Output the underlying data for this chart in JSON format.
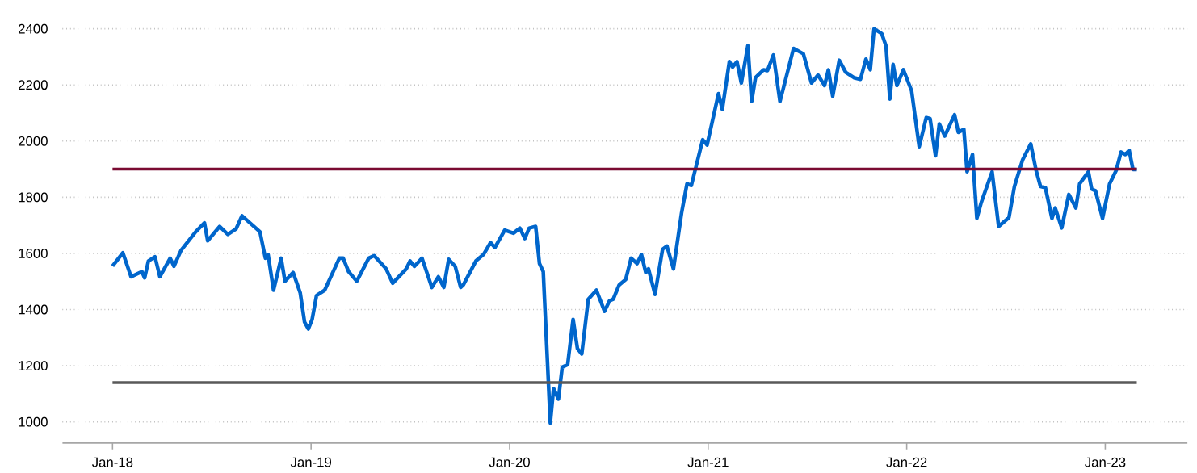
{
  "chart_data": {
    "type": "line",
    "x": [
      "2018-01-01",
      "2018-01-20",
      "2018-02-04",
      "2018-02-24",
      "2018-03-01",
      "2018-03-08",
      "2018-03-20",
      "2018-03-29",
      "2018-04-17",
      "2018-04-24",
      "2018-05-07",
      "2018-06-03",
      "2018-06-19",
      "2018-06-25",
      "2018-07-17",
      "2018-08-01",
      "2018-08-16",
      "2018-08-27",
      "2018-09-29",
      "2018-10-09",
      "2018-10-14",
      "2018-10-24",
      "2018-11-07",
      "2018-11-14",
      "2018-11-29",
      "2018-12-12",
      "2018-12-20",
      "2018-12-27",
      "2019-01-03",
      "2019-01-11",
      "2019-01-26",
      "2019-02-22",
      "2019-03-01",
      "2019-03-11",
      "2019-03-26",
      "2019-04-17",
      "2019-04-27",
      "2019-05-19",
      "2019-05-31",
      "2019-06-25",
      "2019-07-02",
      "2019-07-10",
      "2019-07-24",
      "2019-08-11",
      "2019-08-23",
      "2019-09-02",
      "2019-09-11",
      "2019-09-23",
      "2019-10-03",
      "2019-10-08",
      "2019-10-31",
      "2019-11-14",
      "2019-11-27",
      "2019-12-05",
      "2019-12-23",
      "2020-01-08",
      "2020-01-20",
      "2020-01-29",
      "2020-02-06",
      "2020-02-18",
      "2020-02-25",
      "2020-03-03",
      "2020-03-16",
      "2020-03-22",
      "2020-03-31",
      "2020-04-07",
      "2020-04-17",
      "2020-04-27",
      "2020-05-05",
      "2020-05-13",
      "2020-05-25",
      "2020-06-09",
      "2020-06-24",
      "2020-07-03",
      "2020-07-10",
      "2020-07-21",
      "2020-08-02",
      "2020-08-12",
      "2020-08-23",
      "2020-08-31",
      "2020-09-08",
      "2020-09-13",
      "2020-09-25",
      "2020-10-09",
      "2020-10-17",
      "2020-10-29",
      "2020-11-13",
      "2020-11-23",
      "2020-12-01",
      "2020-12-22",
      "2020-12-30",
      "2021-01-20",
      "2021-01-27",
      "2021-02-09",
      "2021-02-15",
      "2021-02-23",
      "2021-03-03",
      "2021-03-15",
      "2021-03-22",
      "2021-03-29",
      "2021-04-13",
      "2021-04-20",
      "2021-05-01",
      "2021-05-13",
      "2021-06-07",
      "2021-06-25",
      "2021-07-10",
      "2021-07-22",
      "2021-08-03",
      "2021-08-10",
      "2021-08-18",
      "2021-08-30",
      "2021-09-11",
      "2021-09-26",
      "2021-10-08",
      "2021-10-18",
      "2021-10-26",
      "2021-11-02",
      "2021-11-16",
      "2021-11-24",
      "2021-12-01",
      "2021-12-07",
      "2021-12-14",
      "2021-12-26",
      "2022-01-10",
      "2022-01-24",
      "2022-02-06",
      "2022-02-13",
      "2022-02-23",
      "2022-03-02",
      "2022-03-12",
      "2022-03-30",
      "2022-04-06",
      "2022-04-16",
      "2022-04-22",
      "2022-05-02",
      "2022-05-10",
      "2022-05-18",
      "2022-06-07",
      "2022-06-19",
      "2022-07-08",
      "2022-07-18",
      "2022-08-02",
      "2022-08-17",
      "2022-08-27",
      "2022-09-04",
      "2022-09-13",
      "2022-09-25",
      "2022-10-01",
      "2022-10-13",
      "2022-10-26",
      "2022-11-08",
      "2022-11-15",
      "2022-12-01",
      "2022-12-07",
      "2022-12-14",
      "2022-12-27",
      "2023-01-09",
      "2023-01-21",
      "2023-01-30",
      "2023-02-07",
      "2023-02-14",
      "2023-02-21",
      "2023-02-28"
    ],
    "series": [
      {
        "color": "#0066cc",
        "values": [
          1555,
          1602,
          1517,
          1535,
          1513,
          1573,
          1588,
          1517,
          1583,
          1554,
          1611,
          1677,
          1709,
          1645,
          1696,
          1668,
          1687,
          1734,
          1677,
          1583,
          1596,
          1469,
          1583,
          1501,
          1532,
          1460,
          1356,
          1331,
          1365,
          1450,
          1469,
          1583,
          1583,
          1535,
          1501,
          1583,
          1592,
          1545,
          1494,
          1545,
          1573,
          1554,
          1583,
          1479,
          1517,
          1479,
          1579,
          1554,
          1479,
          1488,
          1573,
          1596,
          1639,
          1621,
          1683,
          1672,
          1690,
          1653,
          1690,
          1696,
          1564,
          1535,
          996,
          1119,
          1081,
          1195,
          1204,
          1365,
          1261,
          1242,
          1437,
          1469,
          1394,
          1431,
          1437,
          1488,
          1507,
          1583,
          1564,
          1596,
          1532,
          1545,
          1454,
          1615,
          1626,
          1545,
          1744,
          1848,
          1842,
          2005,
          1986,
          2169,
          2113,
          2283,
          2264,
          2283,
          2207,
          2340,
          2141,
          2226,
          2254,
          2251,
          2307,
          2141,
          2330,
          2311,
          2207,
          2235,
          2198,
          2254,
          2160,
          2288,
          2245,
          2226,
          2220,
          2292,
          2254,
          2400,
          2383,
          2339,
          2150,
          2273,
          2198,
          2254,
          2179,
          1980,
          2084,
          2080,
          1948,
          2061,
          2018,
          2094,
          2031,
          2042,
          1891,
          1952,
          1725,
          1781,
          1891,
          1696,
          1728,
          1838,
          1933,
          1990,
          1895,
          1838,
          1834,
          1725,
          1762,
          1691,
          1810,
          1762,
          1848,
          1891,
          1829,
          1823,
          1725,
          1848,
          1895,
          1961,
          1952,
          1967,
          1899,
          1899
        ]
      }
    ],
    "xlim": [
      "2017-10-01",
      "2023-06-01"
    ],
    "xticks": [
      {
        "value": "2018-01-01",
        "label": "Jan-18"
      },
      {
        "value": "2019-01-01",
        "label": "Jan-19"
      },
      {
        "value": "2020-01-01",
        "label": "Jan-20"
      },
      {
        "value": "2021-01-01",
        "label": "Jan-21"
      },
      {
        "value": "2022-01-01",
        "label": "Jan-22"
      },
      {
        "value": "2023-01-01",
        "label": "Jan-23"
      }
    ],
    "ylim": [
      925,
      2400
    ],
    "yticks": [
      1000,
      1200,
      1400,
      1600,
      1800,
      2000,
      2200,
      2400
    ],
    "grid": "y",
    "line_style": "solid",
    "marker": "none",
    "ref_lines": [
      {
        "axis": "y",
        "value": 1900,
        "color": "#7a0a32"
      },
      {
        "axis": "y",
        "value": 1140,
        "color": "#595959"
      }
    ]
  }
}
